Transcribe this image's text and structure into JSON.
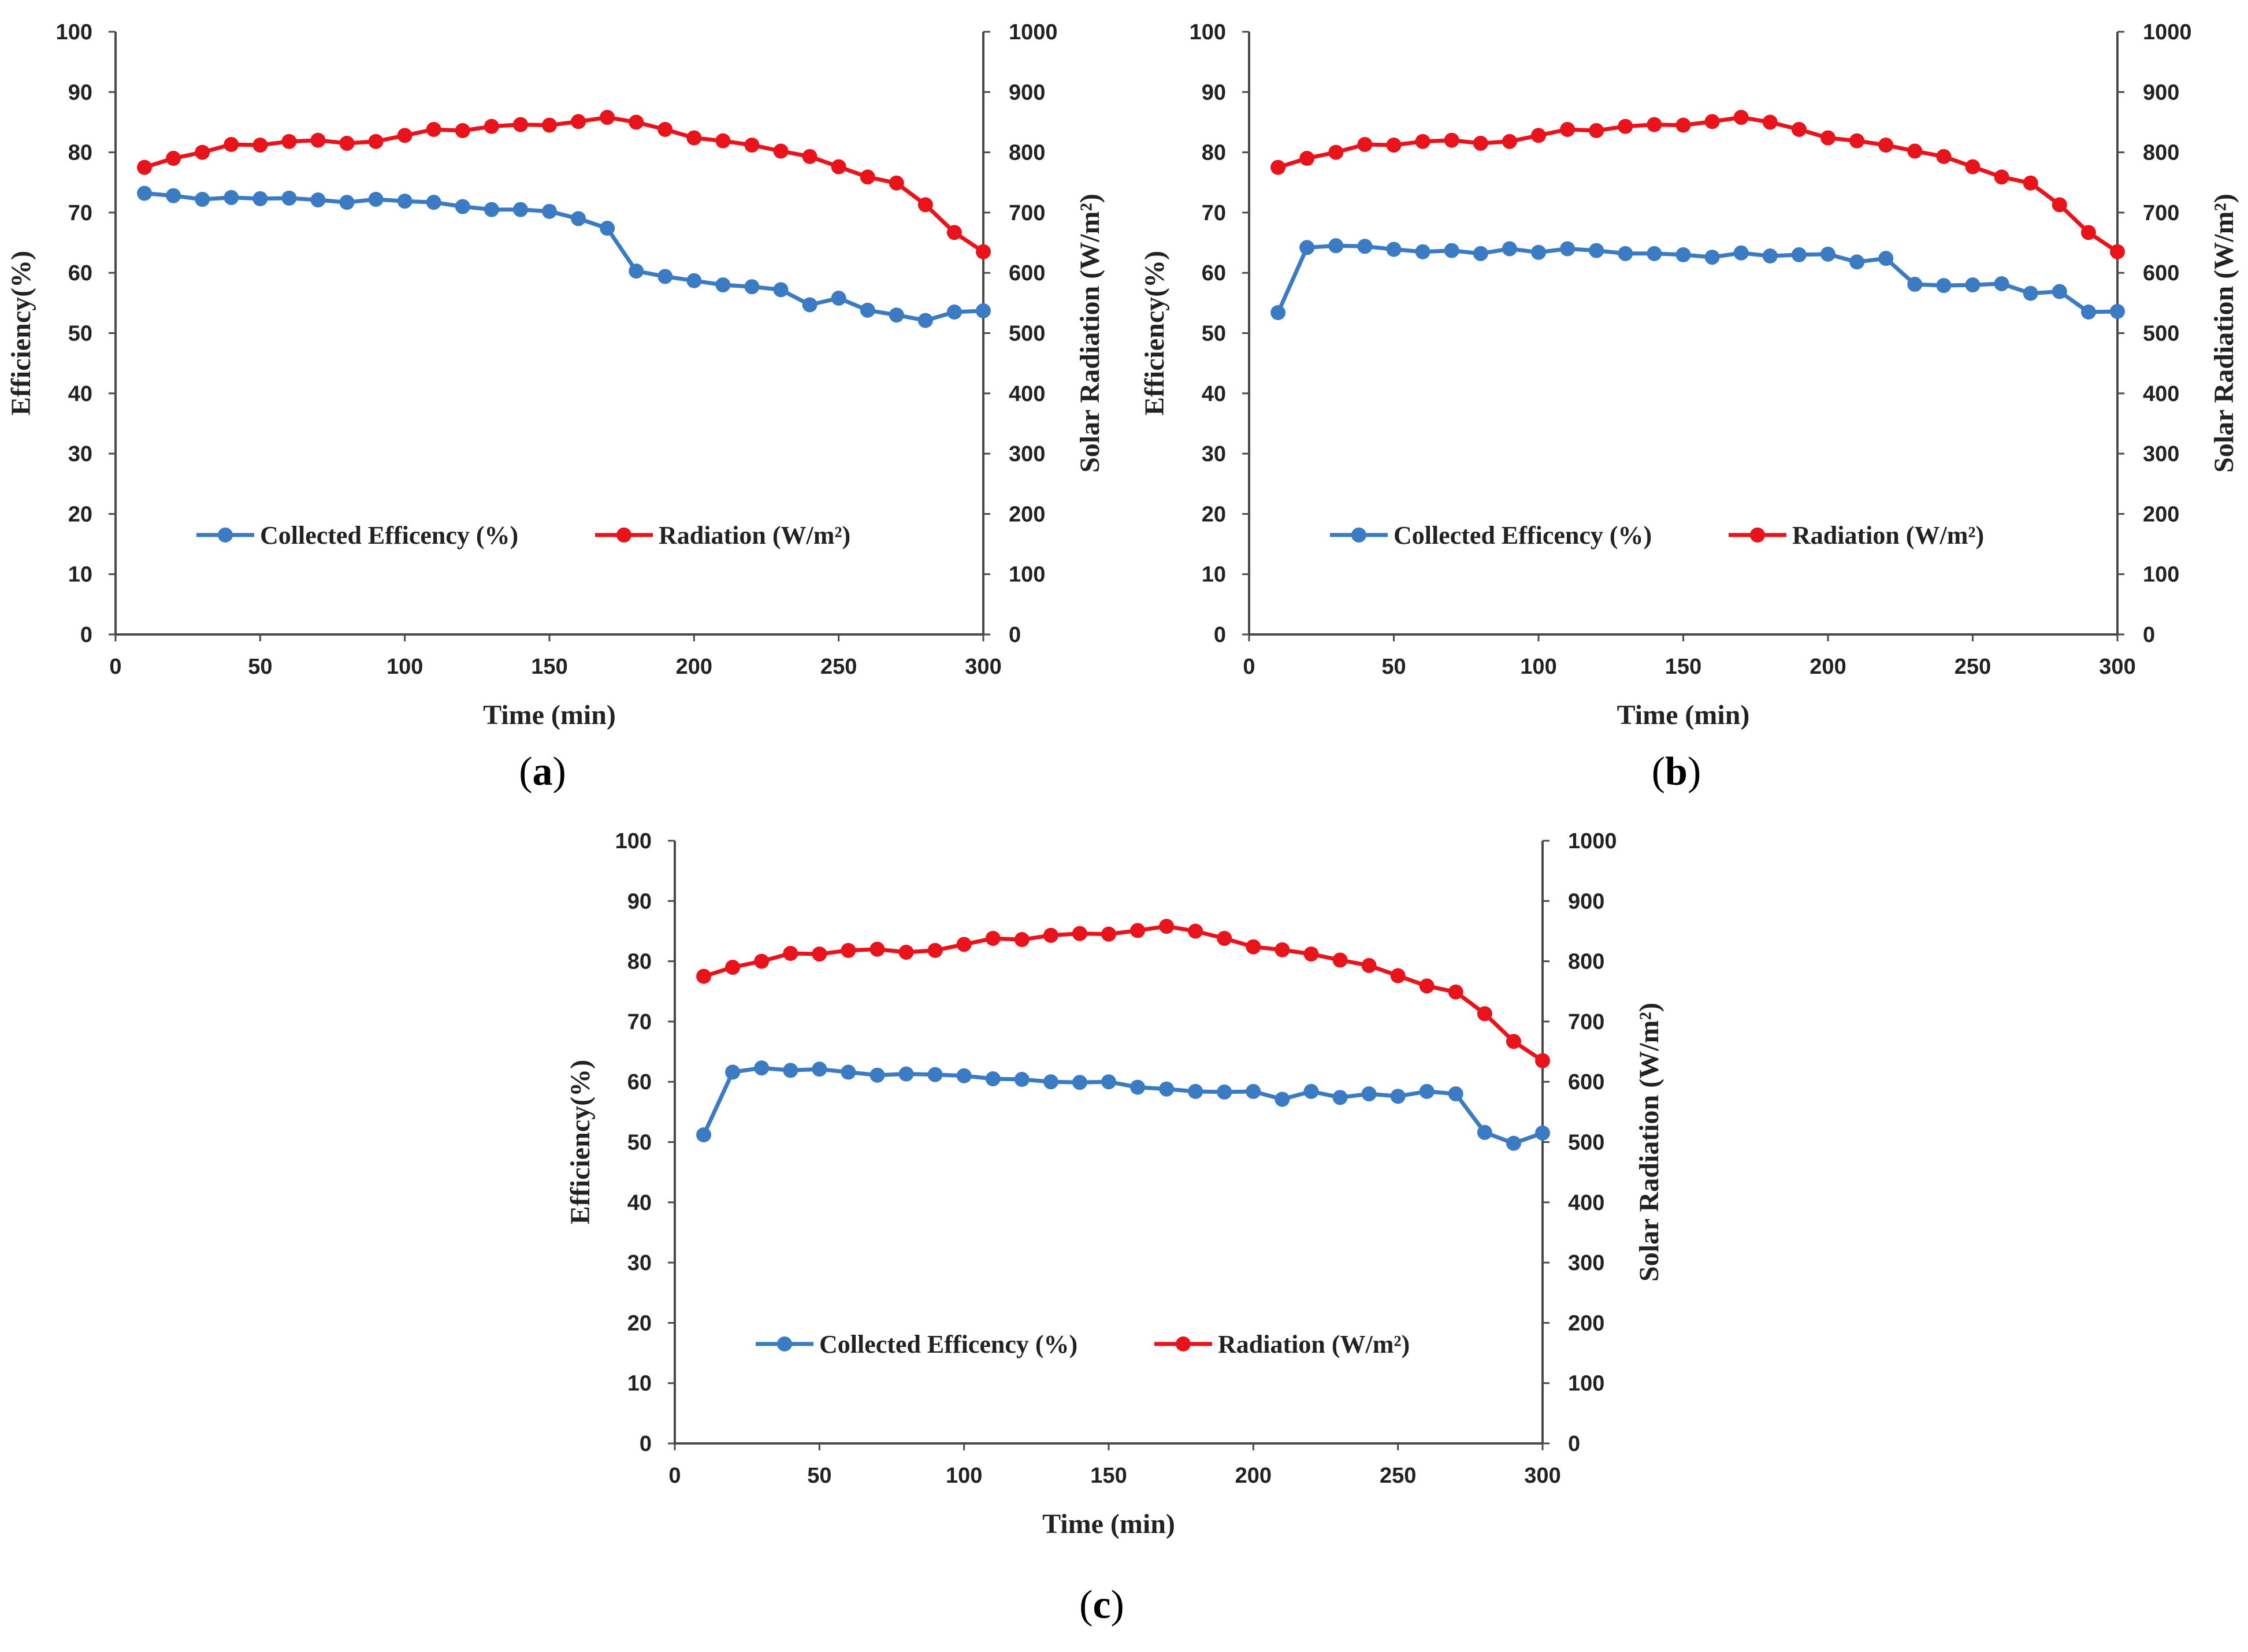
{
  "chart_data": [
    {
      "type": "line",
      "panel_label": "(a)",
      "panel_letter": "a",
      "xlabel": "Time (min)",
      "ylabel_left": "Efficiency(%)",
      "ylabel_right": "Solar Radiation (W/m²)",
      "xlim": [
        0,
        300
      ],
      "xticks": [
        "0",
        "50",
        "100",
        "150",
        "200",
        "250",
        "300"
      ],
      "ylim_left": [
        0,
        100
      ],
      "yticks_left": [
        "0",
        "10",
        "20",
        "30",
        "40",
        "50",
        "60",
        "70",
        "80",
        "90",
        "100"
      ],
      "ylim_right": [
        0,
        1000
      ],
      "yticks_right": [
        "0",
        "100",
        "200",
        "300",
        "400",
        "500",
        "600",
        "700",
        "800",
        "900",
        "1000"
      ],
      "grid": false,
      "x": [
        10,
        20,
        30,
        40,
        50,
        60,
        70,
        80,
        90,
        100,
        110,
        120,
        130,
        140,
        150,
        160,
        170,
        180,
        190,
        200,
        210,
        220,
        230,
        240,
        250,
        260,
        270,
        280,
        290,
        300
      ],
      "series": [
        {
          "name": "Collected Efficency (%)",
          "axis": "left",
          "color": "#3b7bc4",
          "values": [
            73.2,
            72.8,
            72.2,
            72.5,
            72.3,
            72.4,
            72.1,
            71.7,
            72.2,
            71.9,
            71.7,
            71.0,
            70.5,
            70.5,
            70.2,
            69.0,
            67.4,
            60.3,
            59.4,
            58.7,
            58.0,
            57.7,
            57.2,
            54.7,
            55.8,
            53.8,
            53.0,
            52.1,
            53.5,
            53.7
          ]
        },
        {
          "name": "Radiation (W/m²)",
          "axis": "right",
          "color": "#e8131b",
          "values": [
            775,
            790,
            800,
            813,
            812,
            818,
            820,
            815,
            818,
            828,
            838,
            836,
            843,
            846,
            845,
            851,
            858,
            850,
            838,
            824,
            819,
            812,
            802,
            793,
            776,
            759,
            749,
            713,
            667,
            635
          ]
        }
      ]
    },
    {
      "type": "line",
      "panel_label": "(b)",
      "panel_letter": "b",
      "xlabel": "Time (min)",
      "ylabel_left": "Efficiency(%)",
      "ylabel_right": "Solar Radiation (W/m²)",
      "xlim": [
        0,
        300
      ],
      "xticks": [
        "0",
        "50",
        "100",
        "150",
        "200",
        "250",
        "300"
      ],
      "ylim_left": [
        0,
        100
      ],
      "yticks_left": [
        "0",
        "10",
        "20",
        "30",
        "40",
        "50",
        "60",
        "70",
        "80",
        "90",
        "100"
      ],
      "ylim_right": [
        0,
        1000
      ],
      "yticks_right": [
        "0",
        "100",
        "200",
        "300",
        "400",
        "500",
        "600",
        "700",
        "800",
        "900",
        "1000"
      ],
      "grid": false,
      "x": [
        10,
        20,
        30,
        40,
        50,
        60,
        70,
        80,
        90,
        100,
        110,
        120,
        130,
        140,
        150,
        160,
        170,
        180,
        190,
        200,
        210,
        220,
        230,
        240,
        250,
        260,
        270,
        280,
        290,
        300
      ],
      "series": [
        {
          "name": "Collected Efficency (%)",
          "axis": "left",
          "color": "#3b7bc4",
          "values": [
            53.4,
            64.2,
            64.5,
            64.4,
            63.9,
            63.5,
            63.7,
            63.2,
            64.0,
            63.4,
            64.0,
            63.7,
            63.2,
            63.2,
            63.0,
            62.6,
            63.3,
            62.8,
            63.0,
            63.1,
            61.8,
            62.4,
            58.1,
            57.9,
            58.0,
            58.2,
            56.6,
            56.9,
            53.5,
            53.6
          ]
        },
        {
          "name": "Radiation (W/m²)",
          "axis": "right",
          "color": "#e8131b",
          "values": [
            775,
            790,
            800,
            813,
            812,
            818,
            820,
            815,
            818,
            828,
            838,
            836,
            843,
            846,
            845,
            851,
            858,
            850,
            838,
            824,
            819,
            812,
            802,
            793,
            776,
            759,
            749,
            713,
            667,
            635
          ]
        }
      ]
    },
    {
      "type": "line",
      "panel_label": "(c)",
      "panel_letter": "c",
      "xlabel": "Time (min)",
      "ylabel_left": "Efficiency(%)",
      "ylabel_right": "Solar Radiation (W/m²)",
      "xlim": [
        0,
        300
      ],
      "xticks": [
        "0",
        "50",
        "100",
        "150",
        "200",
        "250",
        "300"
      ],
      "ylim_left": [
        0,
        100
      ],
      "yticks_left": [
        "0",
        "10",
        "20",
        "30",
        "40",
        "50",
        "60",
        "70",
        "80",
        "90",
        "100"
      ],
      "ylim_right": [
        0,
        1000
      ],
      "yticks_right": [
        "0",
        "100",
        "200",
        "300",
        "400",
        "500",
        "600",
        "700",
        "800",
        "900",
        "1000"
      ],
      "grid": false,
      "x": [
        10,
        20,
        30,
        40,
        50,
        60,
        70,
        80,
        90,
        100,
        110,
        120,
        130,
        140,
        150,
        160,
        170,
        180,
        190,
        200,
        210,
        220,
        230,
        240,
        250,
        260,
        270,
        280,
        290,
        300
      ],
      "series": [
        {
          "name": "Collected Efficency (%)",
          "axis": "left",
          "color": "#3b7bc4",
          "values": [
            51.2,
            61.6,
            62.3,
            61.9,
            62.1,
            61.6,
            61.1,
            61.3,
            61.2,
            61.0,
            60.5,
            60.4,
            60.0,
            59.9,
            60.0,
            59.1,
            58.8,
            58.4,
            58.3,
            58.4,
            57.1,
            58.4,
            57.4,
            58.0,
            57.6,
            58.4,
            58.0,
            51.6,
            49.8,
            51.5
          ]
        },
        {
          "name": "Radiation (W/m²)",
          "axis": "right",
          "color": "#e8131b",
          "values": [
            775,
            790,
            800,
            813,
            812,
            818,
            820,
            815,
            818,
            828,
            838,
            836,
            843,
            846,
            845,
            851,
            858,
            850,
            838,
            824,
            819,
            812,
            802,
            793,
            776,
            759,
            749,
            713,
            667,
            635
          ]
        }
      ]
    }
  ]
}
